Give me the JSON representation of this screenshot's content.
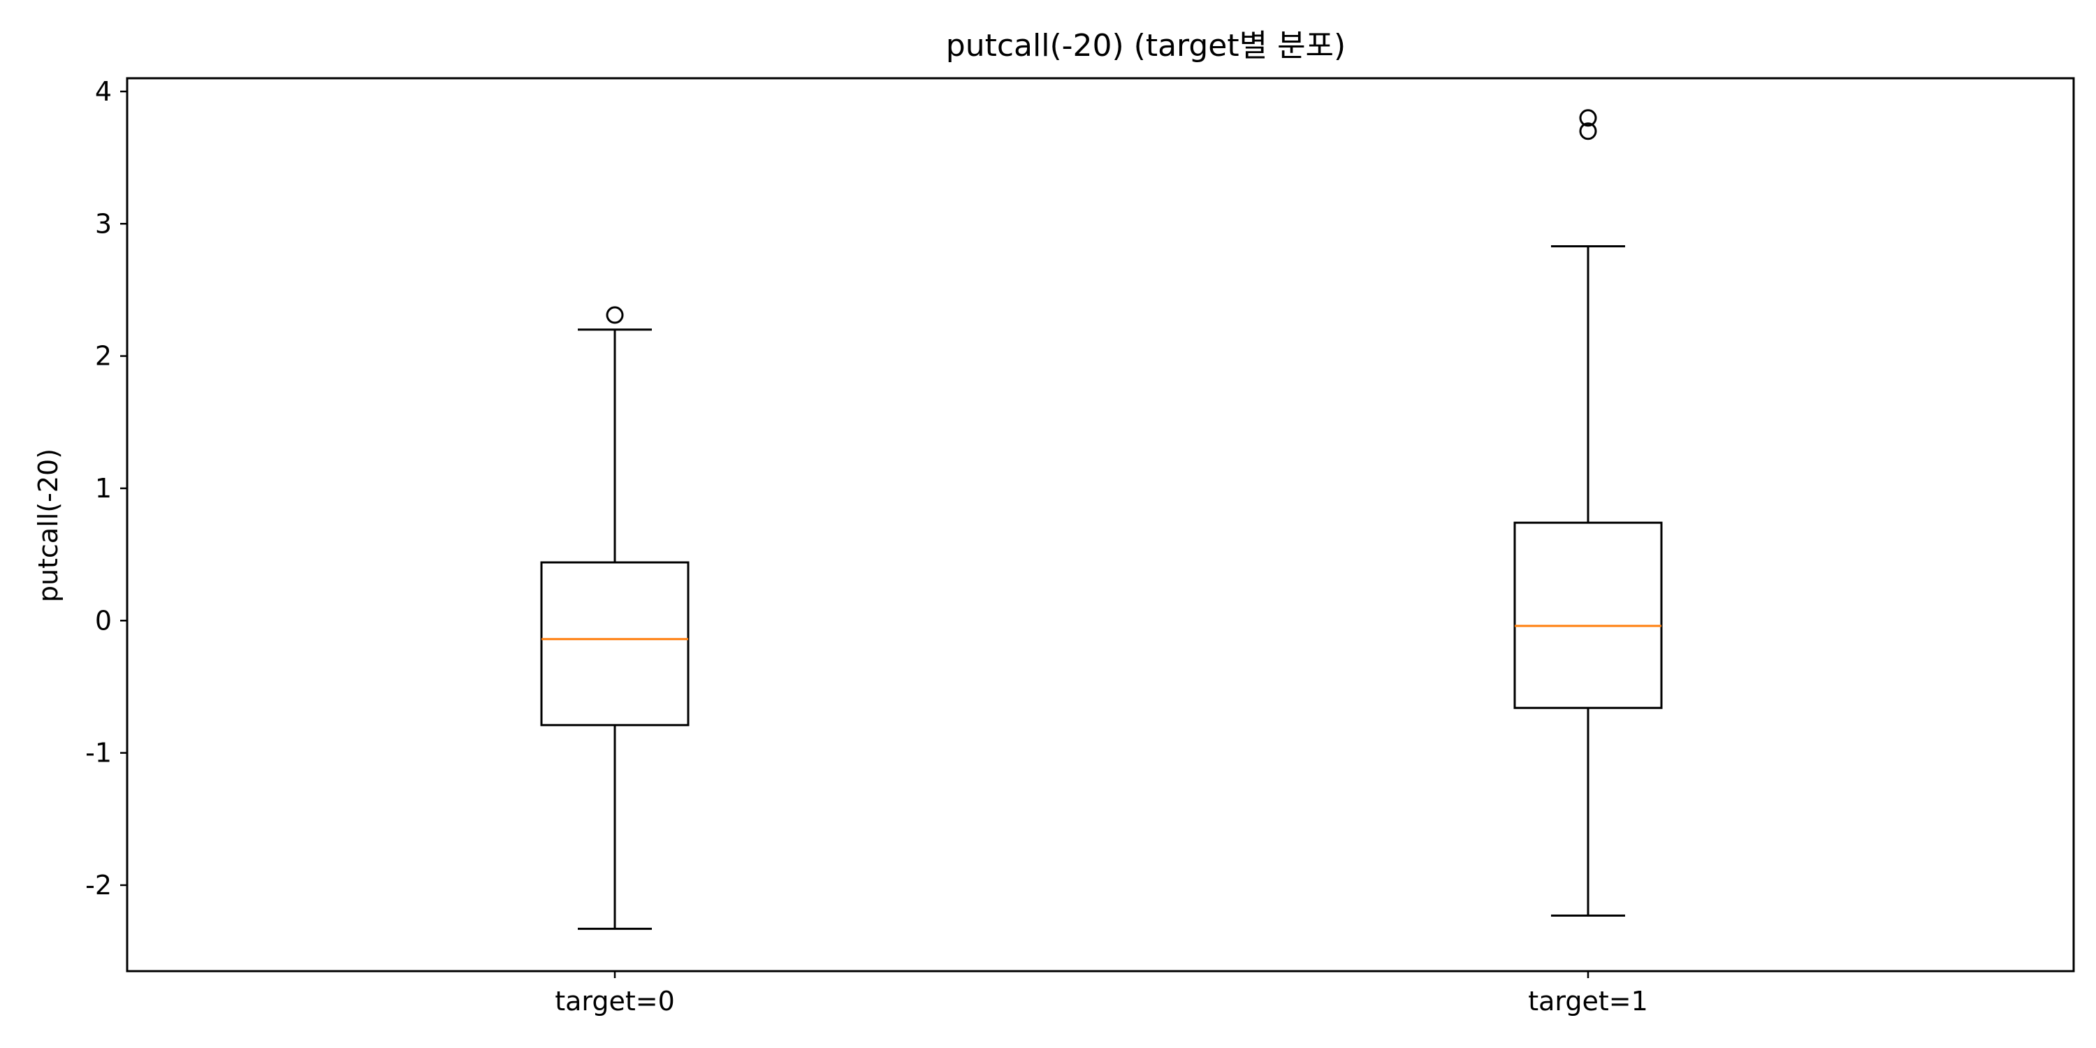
{
  "chart_data": {
    "type": "boxplot",
    "title": "putcall(-20) (target별 분포)",
    "xlabel": "",
    "ylabel": "putcall(-20)",
    "ylim": [
      -2.65,
      4.1
    ],
    "yticks": [
      -2,
      -1,
      0,
      1,
      2,
      3,
      4
    ],
    "ytick_labels": [
      "-2",
      "-1",
      "0",
      "1",
      "2",
      "3",
      "4"
    ],
    "grid": false,
    "categories": [
      "target=0",
      "target=1"
    ],
    "boxes": [
      {
        "category": "target=0",
        "whisker_low": -2.33,
        "q1": -0.79,
        "median": -0.14,
        "q3": 0.44,
        "whisker_high": 2.2,
        "outliers": [
          2.31
        ]
      },
      {
        "category": "target=1",
        "whisker_low": -2.23,
        "q1": -0.66,
        "median": -0.04,
        "q3": 0.74,
        "whisker_high": 2.83,
        "outliers": [
          3.7,
          3.8
        ]
      }
    ],
    "colors": {
      "box": "#000000",
      "median": "#ff7f0e",
      "axes": "#000000",
      "background": "#ffffff"
    }
  }
}
